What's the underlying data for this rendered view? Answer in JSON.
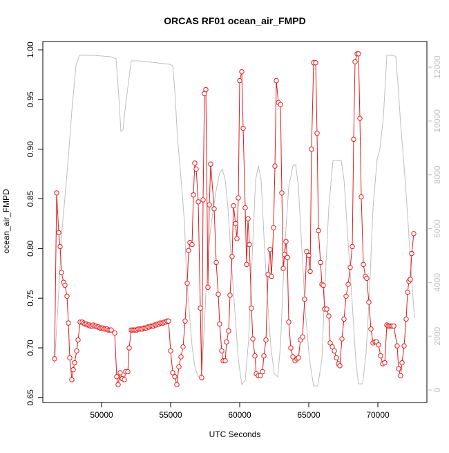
{
  "chart_data": {
    "type": "line",
    "title": "ORCAS RF01 ocean_air_FMPD",
    "xlabel": "UTC Seconds",
    "ylabel": "ocean_air_FMPD",
    "xlim": [
      45750,
      73550
    ],
    "ylim": [
      0.645,
      1.0084
    ],
    "y2lim": [
      -463,
      12953
    ],
    "xticks": [
      50000,
      55000,
      60000,
      65000,
      70000
    ],
    "yticks": [
      0.65,
      {
        "value": 0.7,
        "label": "0.70"
      },
      0.75,
      {
        "value": 0.8,
        "label": "0.80"
      },
      0.85,
      {
        "value": 0.9,
        "label": "0.90"
      },
      0.95,
      {
        "value": 1.0,
        "label": "1.00"
      }
    ],
    "y2ticks": [
      0,
      2000,
      4000,
      6000,
      8000,
      10000,
      12000
    ],
    "series": [
      {
        "color": "#bebebe",
        "axis": "y2",
        "markers": false,
        "x": [
          46600,
          46850,
          47150,
          47550,
          47850,
          48150,
          48400,
          48650,
          49400,
          50650,
          51050,
          51250,
          51400,
          51550,
          51750,
          52150,
          52650,
          53650,
          54950,
          55150,
          55300,
          55500,
          55800,
          56000,
          56150,
          56350,
          56550,
          56750,
          57000,
          57250,
          57450,
          57650,
          57900,
          58250,
          58550,
          58750,
          58950,
          59150,
          59400,
          59650,
          59900,
          60150,
          60400,
          60650,
          60950,
          61150,
          61350,
          61550,
          61750,
          62000,
          62250,
          62500,
          62750,
          62950,
          63250,
          63550,
          63850,
          64050,
          64250,
          64500,
          64750,
          65050,
          65350,
          65650,
          65950,
          66150,
          66450,
          66750,
          67050,
          67350,
          67550,
          67850,
          68150,
          68400,
          68600,
          68900,
          69150,
          69400,
          69650,
          69950,
          70150,
          70400,
          70650,
          71150,
          71300,
          71450,
          71650,
          71900,
          72150,
          72400,
          72650
        ],
        "values": [
          1003,
          3187,
          6014,
          8327,
          10383,
          12053,
          12439,
          12439,
          12439,
          12387,
          12310,
          10897,
          9612,
          9663,
          10640,
          12233,
          12233,
          12182,
          12105,
          12053,
          11154,
          9355,
          7556,
          6271,
          4215,
          2930,
          1645,
          874,
          488,
          617,
          2416,
          4729,
          6014,
          7299,
          8070,
          8198,
          7813,
          6785,
          4729,
          2930,
          1131,
          206,
          360,
          1902,
          5500,
          7813,
          8327,
          7813,
          5757,
          3444,
          1645,
          617,
          488,
          1645,
          5243,
          7556,
          8327,
          8378,
          7556,
          5243,
          2930,
          1131,
          154,
          154,
          1131,
          3701,
          6785,
          8532,
          8532,
          8532,
          7813,
          5500,
          3187,
          1131,
          231,
          231,
          1388,
          3701,
          6785,
          8584,
          8969,
          10126,
          12439,
          12439,
          12387,
          11411,
          9869,
          8327,
          6528,
          4472,
          2673
        ]
      },
      {
        "color": "#e31a1c",
        "axis": "y",
        "markers": true,
        "x": [
          46600,
          46750,
          46900,
          47000,
          47100,
          47250,
          47350,
          47500,
          47600,
          47700,
          47850,
          47950,
          48050,
          48200,
          48300,
          48450,
          48600,
          48700,
          48800,
          48900,
          49000,
          49100,
          49200,
          49300,
          49400,
          49500,
          49600,
          49700,
          49800,
          49900,
          50000,
          50100,
          50200,
          50300,
          50400,
          50500,
          50600,
          50700,
          50950,
          51100,
          51200,
          51350,
          51500,
          51650,
          51750,
          51900,
          52000,
          52150,
          52250,
          52350,
          52450,
          52550,
          52650,
          52750,
          52850,
          52950,
          53050,
          53150,
          53250,
          53350,
          53450,
          53550,
          53650,
          53750,
          53850,
          53950,
          54050,
          54150,
          54250,
          54350,
          54450,
          54550,
          54650,
          54750,
          54850,
          55000,
          55150,
          55300,
          55450,
          55600,
          55750,
          55900,
          56050,
          56200,
          56300,
          56400,
          56550,
          56650,
          56750,
          56850,
          57000,
          57150,
          57250,
          57350,
          57450,
          57550,
          57700,
          57800,
          57900,
          58150,
          58300,
          58450,
          58550,
          58700,
          58800,
          58950,
          59050,
          59200,
          59300,
          59450,
          59550,
          59700,
          59800,
          59900,
          60000,
          60150,
          60250,
          60400,
          60500,
          60600,
          60700,
          60850,
          60950,
          61100,
          61200,
          61350,
          61500,
          61650,
          61750,
          61900,
          62050,
          62200,
          62300,
          62450,
          62550,
          62650,
          62800,
          62950,
          63050,
          63150,
          63250,
          63350,
          63450,
          63550,
          63700,
          63850,
          64000,
          64150,
          64250,
          64400,
          64550,
          64700,
          64850,
          65000,
          65100,
          65200,
          65350,
          65500,
          65600,
          65700,
          65850,
          65950,
          66050,
          66150,
          66300,
          66450,
          66550,
          66700,
          66850,
          67000,
          67150,
          67250,
          67400,
          67550,
          67700,
          67850,
          68000,
          68150,
          68250,
          68350,
          68500,
          68600,
          68700,
          68800,
          68950,
          69100,
          69200,
          69350,
          69500,
          69650,
          69800,
          69900,
          70050,
          70200,
          70350,
          70500,
          70650,
          70750,
          70850,
          70950,
          71050,
          71150,
          71400,
          71500,
          71650,
          71750,
          71900,
          72050,
          72150,
          72250,
          72350,
          72450,
          72600
        ],
        "values": [
          0.689,
          0.856,
          0.816,
          0.802,
          0.776,
          0.766,
          0.763,
          0.752,
          0.725,
          0.69,
          0.668,
          0.678,
          0.685,
          0.697,
          0.708,
          0.726,
          0.726,
          0.725,
          0.724,
          0.724,
          0.723,
          0.723,
          0.722,
          0.722,
          0.723,
          0.722,
          0.722,
          0.721,
          0.721,
          0.72,
          0.72,
          0.72,
          0.719,
          0.719,
          0.719,
          0.718,
          0.718,
          0.718,
          0.715,
          0.671,
          0.663,
          0.675,
          0.669,
          0.668,
          0.676,
          0.676,
          0.7,
          0.718,
          0.718,
          0.718,
          0.718,
          0.718,
          0.719,
          0.719,
          0.719,
          0.719,
          0.72,
          0.72,
          0.72,
          0.721,
          0.721,
          0.722,
          0.722,
          0.722,
          0.723,
          0.723,
          0.724,
          0.724,
          0.725,
          0.725,
          0.725,
          0.726,
          0.726,
          0.727,
          0.727,
          0.697,
          0.675,
          0.671,
          0.663,
          0.681,
          0.691,
          0.701,
          0.727,
          0.765,
          0.798,
          0.806,
          0.804,
          0.854,
          0.886,
          0.88,
          0.847,
          0.74,
          0.67,
          0.849,
          0.956,
          0.96,
          0.761,
          0.844,
          0.885,
          0.84,
          0.786,
          0.754,
          0.724,
          0.697,
          0.687,
          0.687,
          0.706,
          0.717,
          0.753,
          0.792,
          0.843,
          0.825,
          0.81,
          0.851,
          0.969,
          0.978,
          0.921,
          0.841,
          0.784,
          0.83,
          0.804,
          0.74,
          0.709,
          0.692,
          0.674,
          0.672,
          0.672,
          0.676,
          0.692,
          0.708,
          0.774,
          0.799,
          0.772,
          0.821,
          0.883,
          0.969,
          0.947,
          0.945,
          0.856,
          0.78,
          0.794,
          0.807,
          0.791,
          0.726,
          0.7,
          0.691,
          0.687,
          0.689,
          0.69,
          0.708,
          0.711,
          0.749,
          0.797,
          0.793,
          0.777,
          0.9,
          0.987,
          0.987,
          0.916,
          0.818,
          0.786,
          0.764,
          0.763,
          0.739,
          0.739,
          0.732,
          0.705,
          0.701,
          0.697,
          0.69,
          0.684,
          0.682,
          0.709,
          0.729,
          0.752,
          0.764,
          0.781,
          0.802,
          0.91,
          0.988,
          0.996,
          0.996,
          0.931,
          0.852,
          0.784,
          0.772,
          0.77,
          0.746,
          0.719,
          0.705,
          0.706,
          0.706,
          0.703,
          0.692,
          0.684,
          0.685,
          0.723,
          0.722,
          0.722,
          0.722,
          0.722,
          0.722,
          0.702,
          0.679,
          0.672,
          0.685,
          0.702,
          0.729,
          0.756,
          0.767,
          0.769,
          0.795,
          0.815
        ]
      }
    ]
  }
}
